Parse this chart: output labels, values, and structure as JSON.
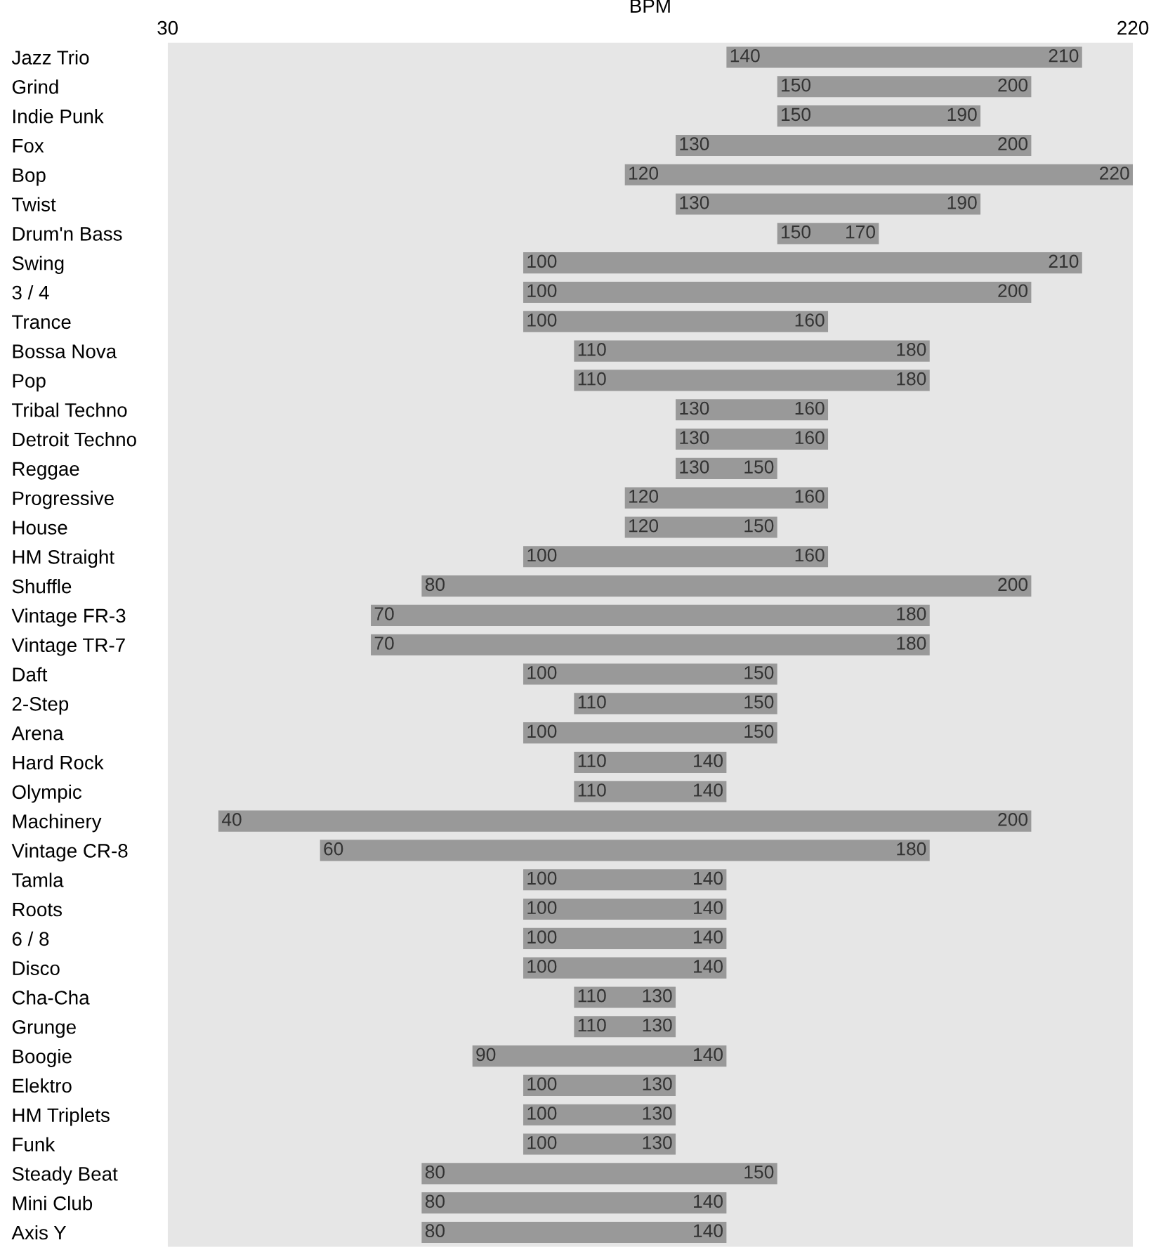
{
  "chart_data": {
    "type": "bar",
    "orientation": "horizontal",
    "xlabel": "BPM",
    "xlim": [
      30,
      220
    ],
    "xticks": [
      30,
      220
    ],
    "categories": [
      "Jazz Trio",
      "Grind",
      "Indie Punk",
      "Fox",
      "Bop",
      "Twist",
      "Drum'n Bass",
      "Swing",
      "3 / 4",
      "Trance",
      "Bossa Nova",
      "Pop",
      "Tribal Techno",
      "Detroit Techno",
      "Reggae",
      "Progressive",
      "House",
      "HM Straight",
      "Shuffle",
      "Vintage FR-3",
      "Vintage TR-7",
      "Daft",
      "2-Step",
      "Arena",
      "Hard Rock",
      "Olympic",
      "Machinery",
      "Vintage CR-8",
      "Tamla",
      "Roots",
      "6 / 8",
      "Disco",
      "Cha-Cha",
      "Grunge",
      "Boogie",
      "Elektro",
      "HM Triplets",
      "Funk",
      "Steady Beat",
      "Mini Club",
      "Axis Y"
    ],
    "series": [
      {
        "color": "#999999",
        "base": [
          140,
          150,
          150,
          130,
          120,
          130,
          150,
          100,
          100,
          100,
          110,
          110,
          130,
          130,
          130,
          120,
          120,
          100,
          80,
          70,
          70,
          100,
          110,
          100,
          110,
          110,
          40,
          60,
          100,
          100,
          100,
          100,
          110,
          110,
          90,
          100,
          100,
          100,
          80,
          80,
          80
        ],
        "values": [
          70,
          50,
          40,
          70,
          100,
          60,
          20,
          110,
          100,
          60,
          70,
          70,
          30,
          30,
          20,
          40,
          30,
          60,
          120,
          110,
          110,
          50,
          40,
          50,
          30,
          30,
          160,
          120,
          40,
          40,
          40,
          40,
          20,
          20,
          50,
          30,
          30,
          30,
          70,
          60,
          60
        ]
      }
    ],
    "bands": [
      {
        "axis": "x",
        "from": 30,
        "to": 220,
        "color": "#e6e6e6"
      }
    ],
    "annotations": [
      {
        "text": "140",
        "x": 140,
        "y": "Jazz Trio"
      },
      {
        "text": "210",
        "x": 210,
        "y": "Jazz Trio"
      },
      {
        "text": "150",
        "x": 150,
        "y": "Grind"
      },
      {
        "text": "200",
        "x": 200,
        "y": "Grind"
      },
      {
        "text": "150",
        "x": 150,
        "y": "Indie Punk"
      },
      {
        "text": "190",
        "x": 190,
        "y": "Indie Punk"
      },
      {
        "text": "130",
        "x": 130,
        "y": "Fox"
      },
      {
        "text": "200",
        "x": 200,
        "y": "Fox"
      },
      {
        "text": "120",
        "x": 120,
        "y": "Bop"
      },
      {
        "text": "220",
        "x": 220,
        "y": "Bop"
      },
      {
        "text": "130",
        "x": 130,
        "y": "Twist"
      },
      {
        "text": "190",
        "x": 190,
        "y": "Twist"
      },
      {
        "text": "150",
        "x": 150,
        "y": "Drum'n Bass"
      },
      {
        "text": "170",
        "x": 170,
        "y": "Drum'n Bass"
      },
      {
        "text": "100",
        "x": 100,
        "y": "Swing"
      },
      {
        "text": "210",
        "x": 210,
        "y": "Swing"
      },
      {
        "text": "100",
        "x": 100,
        "y": "3 / 4"
      },
      {
        "text": "200",
        "x": 200,
        "y": "3 / 4"
      },
      {
        "text": "100",
        "x": 100,
        "y": "Trance"
      },
      {
        "text": "160",
        "x": 160,
        "y": "Trance"
      },
      {
        "text": "110",
        "x": 110,
        "y": "Bossa Nova"
      },
      {
        "text": "180",
        "x": 180,
        "y": "Bossa Nova"
      },
      {
        "text": "110",
        "x": 110,
        "y": "Pop"
      },
      {
        "text": "180",
        "x": 180,
        "y": "Pop"
      },
      {
        "text": "130",
        "x": 130,
        "y": "Tribal Techno"
      },
      {
        "text": "160",
        "x": 160,
        "y": "Tribal Techno"
      },
      {
        "text": "130",
        "x": 130,
        "y": "Detroit Techno"
      },
      {
        "text": "160",
        "x": 160,
        "y": "Detroit Techno"
      },
      {
        "text": "130",
        "x": 130,
        "y": "Reggae"
      },
      {
        "text": "150",
        "x": 150,
        "y": "Reggae"
      },
      {
        "text": "120",
        "x": 120,
        "y": "Progressive"
      },
      {
        "text": "160",
        "x": 160,
        "y": "Progressive"
      },
      {
        "text": "120",
        "x": 120,
        "y": "House"
      },
      {
        "text": "150",
        "x": 150,
        "y": "House"
      },
      {
        "text": "100",
        "x": 100,
        "y": "HM Straight"
      },
      {
        "text": "160",
        "x": 160,
        "y": "HM Straight"
      },
      {
        "text": "80",
        "x": 80,
        "y": "Shuffle"
      },
      {
        "text": "200",
        "x": 200,
        "y": "Shuffle"
      },
      {
        "text": "70",
        "x": 70,
        "y": "Vintage FR-3"
      },
      {
        "text": "180",
        "x": 180,
        "y": "Vintage FR-3"
      },
      {
        "text": "70",
        "x": 70,
        "y": "Vintage TR-7"
      },
      {
        "text": "180",
        "x": 180,
        "y": "Vintage TR-7"
      },
      {
        "text": "100",
        "x": 100,
        "y": "Daft"
      },
      {
        "text": "150",
        "x": 150,
        "y": "Daft"
      },
      {
        "text": "110",
        "x": 110,
        "y": "2-Step"
      },
      {
        "text": "150",
        "x": 150,
        "y": "2-Step"
      },
      {
        "text": "100",
        "x": 100,
        "y": "Arena"
      },
      {
        "text": "150",
        "x": 150,
        "y": "Arena"
      },
      {
        "text": "110",
        "x": 110,
        "y": "Hard Rock"
      },
      {
        "text": "140",
        "x": 140,
        "y": "Hard Rock"
      },
      {
        "text": "110",
        "x": 110,
        "y": "Olympic"
      },
      {
        "text": "140",
        "x": 140,
        "y": "Olympic"
      },
      {
        "text": "40",
        "x": 40,
        "y": "Machinery"
      },
      {
        "text": "200",
        "x": 200,
        "y": "Machinery"
      },
      {
        "text": "60",
        "x": 60,
        "y": "Vintage CR-8"
      },
      {
        "text": "180",
        "x": 180,
        "y": "Vintage CR-8"
      },
      {
        "text": "100",
        "x": 100,
        "y": "Tamla"
      },
      {
        "text": "140",
        "x": 140,
        "y": "Tamla"
      },
      {
        "text": "100",
        "x": 100,
        "y": "Roots"
      },
      {
        "text": "140",
        "x": 140,
        "y": "Roots"
      },
      {
        "text": "100",
        "x": 100,
        "y": "6 / 8"
      },
      {
        "text": "140",
        "x": 140,
        "y": "6 / 8"
      },
      {
        "text": "100",
        "x": 100,
        "y": "Disco"
      },
      {
        "text": "140",
        "x": 140,
        "y": "Disco"
      },
      {
        "text": "110",
        "x": 110,
        "y": "Cha-Cha"
      },
      {
        "text": "130",
        "x": 130,
        "y": "Cha-Cha"
      },
      {
        "text": "110",
        "x": 110,
        "y": "Grunge"
      },
      {
        "text": "130",
        "x": 130,
        "y": "Grunge"
      },
      {
        "text": "90",
        "x": 90,
        "y": "Boogie"
      },
      {
        "text": "140",
        "x": 140,
        "y": "Boogie"
      },
      {
        "text": "100",
        "x": 100,
        "y": "Elektro"
      },
      {
        "text": "130",
        "x": 130,
        "y": "Elektro"
      },
      {
        "text": "100",
        "x": 100,
        "y": "HM Triplets"
      },
      {
        "text": "130",
        "x": 130,
        "y": "HM Triplets"
      },
      {
        "text": "100",
        "x": 100,
        "y": "Funk"
      },
      {
        "text": "130",
        "x": 130,
        "y": "Funk"
      },
      {
        "text": "80",
        "x": 80,
        "y": "Steady Beat"
      },
      {
        "text": "150",
        "x": 150,
        "y": "Steady Beat"
      },
      {
        "text": "80",
        "x": 80,
        "y": "Mini Club"
      },
      {
        "text": "140",
        "x": 140,
        "y": "Mini Club"
      },
      {
        "text": "80",
        "x": 80,
        "y": "Axis Y"
      },
      {
        "text": "140",
        "x": 140,
        "y": "Axis Y"
      }
    ]
  }
}
